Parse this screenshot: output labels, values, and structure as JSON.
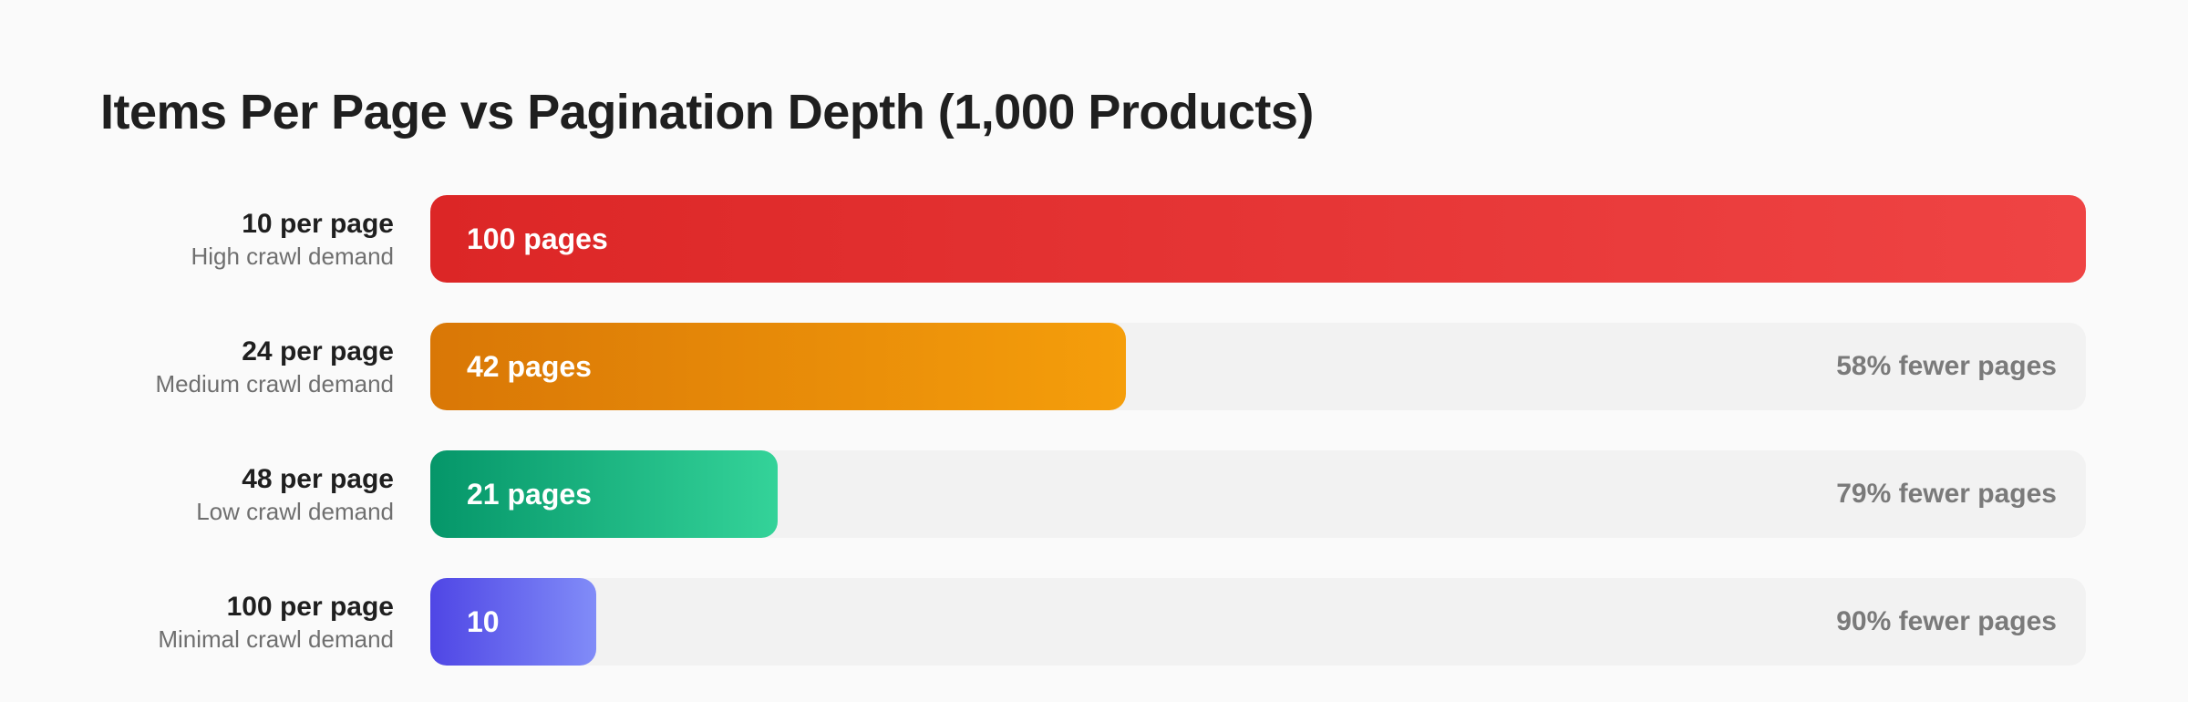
{
  "chart_data": {
    "type": "bar",
    "orientation": "horizontal",
    "title": "Items Per Page vs Pagination Depth (1,000 Products)",
    "categories": [
      "10 per page",
      "24 per page",
      "48 per page",
      "100 per page"
    ],
    "subtitles": [
      "High crawl demand",
      "Medium crawl demand",
      "Low crawl demand",
      "Minimal crawl demand"
    ],
    "values": [
      100,
      42,
      21,
      10
    ],
    "value_labels": [
      "100 pages",
      "42 pages",
      "21 pages",
      "10"
    ],
    "annotations": [
      "",
      "58% fewer pages",
      "79% fewer pages",
      "90% fewer pages"
    ],
    "xlim": [
      0,
      100
    ],
    "grid": false,
    "colors": [
      [
        "#dc2626",
        "#ef4444"
      ],
      [
        "#d97706",
        "#f59e0b"
      ],
      [
        "#059669",
        "#34d399"
      ],
      [
        "#4f46e5",
        "#818cf8"
      ]
    ]
  }
}
